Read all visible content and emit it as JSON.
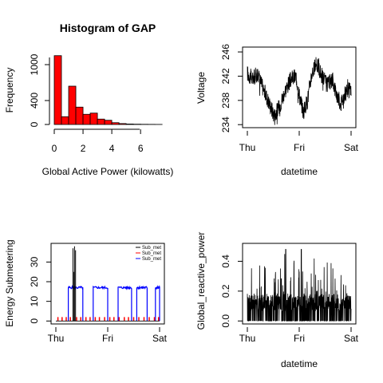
{
  "chart_data": [
    {
      "type": "bar",
      "title": "Histogram of GAP",
      "xlabel": "Global Active Power (kilowatts)",
      "ylabel": "Frequency",
      "x_ticks": [
        "0",
        "2",
        "4",
        "6"
      ],
      "y_ticks": [
        "0",
        "400",
        "1000"
      ],
      "xlim": [
        0,
        7.6
      ],
      "ylim": [
        0,
        1200
      ],
      "bin_width": 0.5,
      "values": [
        1150,
        130,
        640,
        290,
        170,
        190,
        90,
        70,
        30,
        15,
        8,
        5,
        3,
        2,
        1
      ],
      "bar_color": "#ff0000"
    },
    {
      "type": "line",
      "title": "",
      "xlabel": "datetime",
      "ylabel": "Voltage",
      "x_ticks": [
        "Thu",
        "Fri",
        "Sat"
      ],
      "y_ticks": [
        "234",
        "238",
        "242",
        "246"
      ],
      "y_tick_values": [
        234,
        238,
        242,
        246
      ],
      "ylim": [
        233.5,
        246.8
      ],
      "baseline": [
        [
          0.0,
          242.5
        ],
        [
          0.05,
          241.5
        ],
        [
          0.1,
          242.5
        ],
        [
          0.14,
          240.5
        ],
        [
          0.2,
          238.0
        ],
        [
          0.26,
          235.5
        ],
        [
          0.31,
          237.0
        ],
        [
          0.36,
          239.5
        ],
        [
          0.42,
          241.5
        ],
        [
          0.47,
          242.0
        ],
        [
          0.5,
          239.0
        ],
        [
          0.54,
          236.0
        ],
        [
          0.58,
          238.0
        ],
        [
          0.62,
          242.5
        ],
        [
          0.67,
          244.0
        ],
        [
          0.72,
          242.0
        ],
        [
          0.77,
          240.5
        ],
        [
          0.82,
          241.5
        ],
        [
          0.86,
          239.0
        ],
        [
          0.9,
          237.5
        ],
        [
          0.94,
          239.0
        ],
        [
          1.0,
          240.0
        ]
      ],
      "noise": 1.4,
      "line_color": "#000000"
    },
    {
      "type": "line",
      "title": "",
      "xlabel": "",
      "ylabel": "Energy Submetering",
      "x_ticks": [
        "Thu",
        "Fri",
        "Sat"
      ],
      "y_ticks": [
        "0",
        "10",
        "20",
        "30"
      ],
      "y_tick_values": [
        0,
        10,
        20,
        30
      ],
      "ylim": [
        -1.5,
        39.5
      ],
      "series": [
        {
          "name": "Sub_met",
          "color": "#000000",
          "spikes": [
            [
              0.165,
              37
            ],
            [
              0.18,
              38
            ],
            [
              0.19,
              36
            ],
            [
              0.175,
              25
            ]
          ]
        },
        {
          "name": "Sub_met",
          "color": "#ff0000",
          "pulses": [
            0.02,
            0.06,
            0.1,
            0.14,
            0.2,
            0.24,
            0.29,
            0.33,
            0.38,
            0.42,
            0.47,
            0.52,
            0.56,
            0.61,
            0.66,
            0.7,
            0.75,
            0.8,
            0.85,
            0.9,
            0.95,
            0.99
          ],
          "level": 2
        },
        {
          "name": "Sub_met",
          "color": "#0000ff",
          "blocks": [
            [
              0.12,
              0.26
            ],
            [
              0.36,
              0.5
            ],
            [
              0.6,
              0.73
            ],
            [
              0.78,
              0.88
            ],
            [
              0.96,
              1.0
            ]
          ],
          "level": 17
        }
      ]
    },
    {
      "type": "line",
      "title": "",
      "xlabel": "datetime",
      "ylabel": "Global_reactive_power",
      "x_ticks": [
        "Thu",
        "Fri",
        "Sat"
      ],
      "y_ticks": [
        "0.0",
        "0.2",
        "0.4"
      ],
      "y_tick_values": [
        0.0,
        0.2,
        0.4
      ],
      "ylim": [
        -0.02,
        0.52
      ],
      "typical": 0.1,
      "peak": 0.5,
      "line_color": "#000000"
    }
  ]
}
